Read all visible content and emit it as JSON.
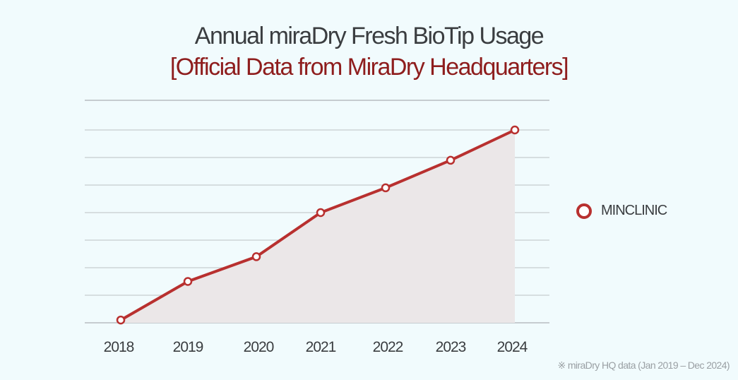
{
  "header": {
    "title": "Annual miraDry Fresh BioTip Usage",
    "subtitle": "[Official Data from MiraDry Headquarters]"
  },
  "legend": {
    "items": [
      {
        "label": "MINCLINIC",
        "color": "#b8302f"
      }
    ]
  },
  "footnote": "※ miraDry HQ data (Jan 2019 – Dec 2024)",
  "colors": {
    "line": "#b8302f",
    "area": "#ebe7e8",
    "grid": "#c6ccd0",
    "background": "#f1fbfd"
  },
  "chart_data": {
    "type": "area",
    "title": "Annual miraDry Fresh BioTip Usage",
    "subtitle": "[Official Data from MiraDry Headquarters]",
    "xlabel": "",
    "ylabel": "",
    "categories": [
      "2018",
      "2019",
      "2020",
      "2021",
      "2022",
      "2023",
      "2024"
    ],
    "series": [
      {
        "name": "MINCLINIC",
        "values": [
          0.1,
          1.5,
          2.4,
          4.0,
          4.9,
          5.9,
          7.0
        ]
      }
    ],
    "ylim": [
      0,
      8
    ],
    "yticks": [
      0,
      1,
      2,
      3,
      4,
      5,
      6,
      7,
      8
    ],
    "y_tick_labels_visible": false,
    "grid": true,
    "legend_position": "right"
  }
}
